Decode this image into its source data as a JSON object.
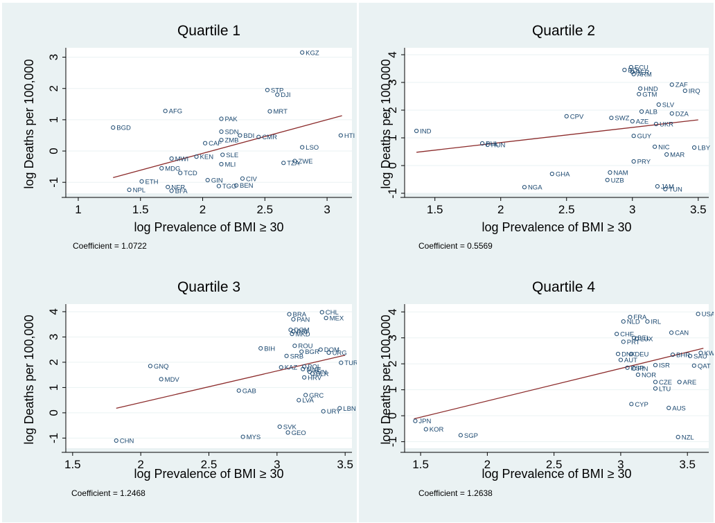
{
  "chart_data": [
    {
      "type": "scatter",
      "title": "Quartile 1",
      "xlabel": "log Prevalence of BMI ≥ 30",
      "ylabel": "log Deaths per 100,000",
      "xlim": [
        0.9,
        3.2
      ],
      "ylim": [
        -1.35,
        3.3
      ],
      "xticks": [
        1,
        1.5,
        2,
        2.5,
        3
      ],
      "xticklabels": [
        "1",
        "1.5",
        "2",
        "2.5",
        "3"
      ],
      "yticks": [
        -1,
        0,
        1,
        2,
        3
      ],
      "yticklabels": [
        "-1",
        "0",
        "1",
        "2",
        "3"
      ],
      "coefficient_text": "Coefficient = 1.0722",
      "fit": {
        "x": [
          1.28,
          3.12
        ],
        "y": [
          -0.85,
          1.13
        ]
      },
      "points": [
        {
          "label": "KGZ",
          "x": 2.8,
          "y": 3.15
        },
        {
          "label": "STP",
          "x": 2.52,
          "y": 1.95
        },
        {
          "label": "DJI",
          "x": 2.6,
          "y": 1.8
        },
        {
          "label": "AFG",
          "x": 1.7,
          "y": 1.28
        },
        {
          "label": "MRT",
          "x": 2.54,
          "y": 1.27
        },
        {
          "label": "PAK",
          "x": 2.15,
          "y": 1.03
        },
        {
          "label": "BGD",
          "x": 1.28,
          "y": 0.75
        },
        {
          "label": "SDN",
          "x": 2.15,
          "y": 0.62
        },
        {
          "label": "BDI",
          "x": 2.3,
          "y": 0.5
        },
        {
          "label": "CMR",
          "x": 2.45,
          "y": 0.45
        },
        {
          "label": "HTI",
          "x": 3.11,
          "y": 0.5
        },
        {
          "label": "ZMB",
          "x": 2.15,
          "y": 0.35
        },
        {
          "label": "CAF",
          "x": 2.02,
          "y": 0.25
        },
        {
          "label": "LSO",
          "x": 2.8,
          "y": 0.12
        },
        {
          "label": "SLE",
          "x": 2.16,
          "y": -0.12
        },
        {
          "label": "KEN",
          "x": 1.95,
          "y": -0.18
        },
        {
          "label": "MWI",
          "x": 1.75,
          "y": -0.24
        },
        {
          "label": "MLI",
          "x": 2.15,
          "y": -0.42
        },
        {
          "label": "TZA",
          "x": 2.65,
          "y": -0.38
        },
        {
          "label": "ZWE",
          "x": 2.74,
          "y": -0.32
        },
        {
          "label": "MDG",
          "x": 1.67,
          "y": -0.55
        },
        {
          "label": "TCD",
          "x": 1.82,
          "y": -0.7
        },
        {
          "label": "GIN",
          "x": 2.04,
          "y": -0.93
        },
        {
          "label": "CIV",
          "x": 2.32,
          "y": -0.88
        },
        {
          "label": "ETH",
          "x": 1.51,
          "y": -0.97
        },
        {
          "label": "TGO",
          "x": 2.13,
          "y": -1.12
        },
        {
          "label": "BEN",
          "x": 2.27,
          "y": -1.1
        },
        {
          "label": "NER",
          "x": 1.72,
          "y": -1.15
        },
        {
          "label": "NPL",
          "x": 1.41,
          "y": -1.24
        },
        {
          "label": "BFA",
          "x": 1.75,
          "y": -1.27
        }
      ]
    },
    {
      "type": "scatter",
      "title": "Quartile 2",
      "xlabel": "log Prevalence of BMI ≥ 30",
      "ylabel": "log Deaths per 100,000",
      "xlim": [
        1.27,
        3.58
      ],
      "ylim": [
        -1.0,
        4.25
      ],
      "xticks": [
        1.5,
        2,
        2.5,
        3,
        3.5
      ],
      "xticklabels": [
        "1.5",
        "2",
        "2.5",
        "3",
        "3.5"
      ],
      "yticks": [
        -1,
        0,
        1,
        2,
        3,
        4
      ],
      "yticklabels": [
        "-1",
        "0",
        "1",
        "2",
        "3",
        "4"
      ],
      "coefficient_text": "Coefficient = 0.5569",
      "fit": {
        "x": [
          1.36,
          3.5
        ],
        "y": [
          0.48,
          1.65
        ]
      },
      "points": [
        {
          "label": "ECU",
          "x": 2.99,
          "y": 3.55
        },
        {
          "label": "BOL",
          "x": 2.94,
          "y": 3.45
        },
        {
          "label": "PER",
          "x": 3.0,
          "y": 3.38
        },
        {
          "label": "ARM",
          "x": 3.01,
          "y": 3.3
        },
        {
          "label": "ZAF",
          "x": 3.3,
          "y": 2.92
        },
        {
          "label": "HND",
          "x": 3.06,
          "y": 2.78
        },
        {
          "label": "IRQ",
          "x": 3.4,
          "y": 2.7
        },
        {
          "label": "GTM",
          "x": 3.05,
          "y": 2.58
        },
        {
          "label": "SLV",
          "x": 3.2,
          "y": 2.2
        },
        {
          "label": "ALB",
          "x": 3.07,
          "y": 1.95
        },
        {
          "label": "DZA",
          "x": 3.3,
          "y": 1.88
        },
        {
          "label": "CPV",
          "x": 2.5,
          "y": 1.78
        },
        {
          "label": "SWZ",
          "x": 2.84,
          "y": 1.72
        },
        {
          "label": "AZE",
          "x": 3.0,
          "y": 1.6
        },
        {
          "label": "UKR",
          "x": 3.18,
          "y": 1.5
        },
        {
          "label": "IND",
          "x": 1.36,
          "y": 1.25
        },
        {
          "label": "GUY",
          "x": 3.01,
          "y": 1.07
        },
        {
          "label": "PHL",
          "x": 1.86,
          "y": 0.8
        },
        {
          "label": "HUN",
          "x": 1.9,
          "y": 0.75
        },
        {
          "label": "NIC",
          "x": 3.17,
          "y": 0.68
        },
        {
          "label": "LBY",
          "x": 3.47,
          "y": 0.65
        },
        {
          "label": "MAR",
          "x": 3.26,
          "y": 0.4
        },
        {
          "label": "PRY",
          "x": 3.01,
          "y": 0.15
        },
        {
          "label": "GHA",
          "x": 2.39,
          "y": -0.3
        },
        {
          "label": "NAM",
          "x": 2.83,
          "y": -0.25
        },
        {
          "label": "UZB",
          "x": 2.81,
          "y": -0.52
        },
        {
          "label": "NGA",
          "x": 2.18,
          "y": -0.78
        },
        {
          "label": "JAM",
          "x": 3.19,
          "y": -0.75
        },
        {
          "label": "TUN",
          "x": 3.25,
          "y": -0.85
        }
      ]
    },
    {
      "type": "scatter",
      "title": "Quartile 3",
      "xlabel": "log Prevalence of BMI ≥ 30",
      "ylabel": "log Deaths per 100,000",
      "xlim": [
        1.45,
        3.55
      ],
      "ylim": [
        -1.4,
        4.3
      ],
      "xticks": [
        1.5,
        2,
        2.5,
        3,
        3.5
      ],
      "xticklabels": [
        "1.5",
        "2",
        "2.5",
        "3",
        "3.5"
      ],
      "yticks": [
        -1,
        0,
        1,
        2,
        3,
        4
      ],
      "yticklabels": [
        "-1",
        "0",
        "1",
        "2",
        "3",
        "4"
      ],
      "coefficient_text": "Coefficient = 1.2468",
      "fit": {
        "x": [
          1.82,
          3.5
        ],
        "y": [
          0.18,
          2.28
        ]
      },
      "points": [
        {
          "label": "CHL",
          "x": 3.33,
          "y": 3.98
        },
        {
          "label": "BRA",
          "x": 3.09,
          "y": 3.9
        },
        {
          "label": "MEX",
          "x": 3.36,
          "y": 3.75
        },
        {
          "label": "PAN",
          "x": 3.12,
          "y": 3.7
        },
        {
          "label": "DOM",
          "x": 3.1,
          "y": 3.28
        },
        {
          "label": "PRI",
          "x": 3.12,
          "y": 3.22
        },
        {
          "label": "MKD",
          "x": 3.11,
          "y": 3.12
        },
        {
          "label": "ROU",
          "x": 3.13,
          "y": 2.65
        },
        {
          "label": "BIH",
          "x": 2.88,
          "y": 2.55
        },
        {
          "label": "DOM",
          "x": 3.32,
          "y": 2.5
        },
        {
          "label": "BGR",
          "x": 3.18,
          "y": 2.42
        },
        {
          "label": "SRB",
          "x": 3.07,
          "y": 2.25
        },
        {
          "label": "URG",
          "x": 3.38,
          "y": 2.38
        },
        {
          "label": "TUR",
          "x": 3.47,
          "y": 1.98
        },
        {
          "label": "GNQ",
          "x": 2.07,
          "y": 1.85
        },
        {
          "label": "KAZ",
          "x": 3.03,
          "y": 1.8
        },
        {
          "label": "POL",
          "x": 3.2,
          "y": 1.83
        },
        {
          "label": "MNE",
          "x": 3.19,
          "y": 1.73
        },
        {
          "label": "SVN",
          "x": 3.24,
          "y": 1.62
        },
        {
          "label": "BLR",
          "x": 3.26,
          "y": 1.55
        },
        {
          "label": "HRV",
          "x": 3.2,
          "y": 1.4
        },
        {
          "label": "MDV",
          "x": 2.15,
          "y": 1.33
        },
        {
          "label": "GAB",
          "x": 2.72,
          "y": 0.88
        },
        {
          "label": "GRC",
          "x": 3.21,
          "y": 0.7
        },
        {
          "label": "LVA",
          "x": 3.16,
          "y": 0.5
        },
        {
          "label": "LBN",
          "x": 3.46,
          "y": 0.18
        },
        {
          "label": "URY",
          "x": 3.34,
          "y": 0.06
        },
        {
          "label": "SVK",
          "x": 3.02,
          "y": -0.55
        },
        {
          "label": "GEO",
          "x": 3.08,
          "y": -0.78
        },
        {
          "label": "MYS",
          "x": 2.75,
          "y": -0.95
        },
        {
          "label": "CHN",
          "x": 1.82,
          "y": -1.1
        }
      ]
    },
    {
      "type": "scatter",
      "title": "Quartile 4",
      "xlabel": "log Prevalence of BMI ≥ 30",
      "ylabel": "log Deaths per 100,000",
      "xlim": [
        1.38,
        3.66
      ],
      "ylim": [
        -1.25,
        4.3
      ],
      "xticks": [
        1.5,
        2,
        2.5,
        3,
        3.5
      ],
      "xticklabels": [
        "1.5",
        "2",
        "2.5",
        "3",
        "3.5"
      ],
      "yticks": [
        -1,
        0,
        1,
        2,
        3,
        4
      ],
      "yticklabels": [
        "-1",
        "0",
        "1",
        "2",
        "3",
        "4"
      ],
      "coefficient_text": "Coefficient = 1.2638",
      "fit": {
        "x": [
          1.45,
          3.62
        ],
        "y": [
          -0.12,
          2.6
        ]
      },
      "points": [
        {
          "label": "USA",
          "x": 3.58,
          "y": 3.92
        },
        {
          "label": "FRA",
          "x": 3.07,
          "y": 3.8
        },
        {
          "label": "NLD",
          "x": 3.02,
          "y": 3.63
        },
        {
          "label": "IRL",
          "x": 3.2,
          "y": 3.63
        },
        {
          "label": "CAN",
          "x": 3.38,
          "y": 3.2
        },
        {
          "label": "CHE",
          "x": 2.97,
          "y": 3.15
        },
        {
          "label": "BEL",
          "x": 3.1,
          "y": 3.0
        },
        {
          "label": "LUX",
          "x": 3.12,
          "y": 2.97
        },
        {
          "label": "PRT",
          "x": 3.02,
          "y": 2.85
        },
        {
          "label": "KWT",
          "x": 3.6,
          "y": 2.42
        },
        {
          "label": "DNK",
          "x": 2.98,
          "y": 2.38
        },
        {
          "label": "DEU",
          "x": 3.08,
          "y": 2.38
        },
        {
          "label": "BHR",
          "x": 3.39,
          "y": 2.35
        },
        {
          "label": "SAU",
          "x": 3.52,
          "y": 2.3
        },
        {
          "label": "AUT",
          "x": 3.0,
          "y": 2.15
        },
        {
          "label": "ISR",
          "x": 3.26,
          "y": 1.95
        },
        {
          "label": "QAT",
          "x": 3.55,
          "y": 1.93
        },
        {
          "label": "ESP",
          "x": 3.05,
          "y": 1.85
        },
        {
          "label": "FIN",
          "x": 3.1,
          "y": 1.82
        },
        {
          "label": "NOR",
          "x": 3.13,
          "y": 1.58
        },
        {
          "label": "SGP",
          "x": 1.8,
          "y": -0.75
        },
        {
          "label": "AUS",
          "x": 3.36,
          "y": 0.3
        },
        {
          "label": "CYP",
          "x": 3.08,
          "y": 0.45
        },
        {
          "label": "CZE",
          "x": 3.26,
          "y": 1.3
        },
        {
          "label": "ARE",
          "x": 3.44,
          "y": 1.3
        },
        {
          "label": "LTU",
          "x": 3.26,
          "y": 1.05
        },
        {
          "label": "JPN",
          "x": 1.46,
          "y": -0.2
        },
        {
          "label": "KOR",
          "x": 1.54,
          "y": -0.52
        },
        {
          "label": "NZL",
          "x": 3.43,
          "y": -0.82
        }
      ]
    }
  ]
}
